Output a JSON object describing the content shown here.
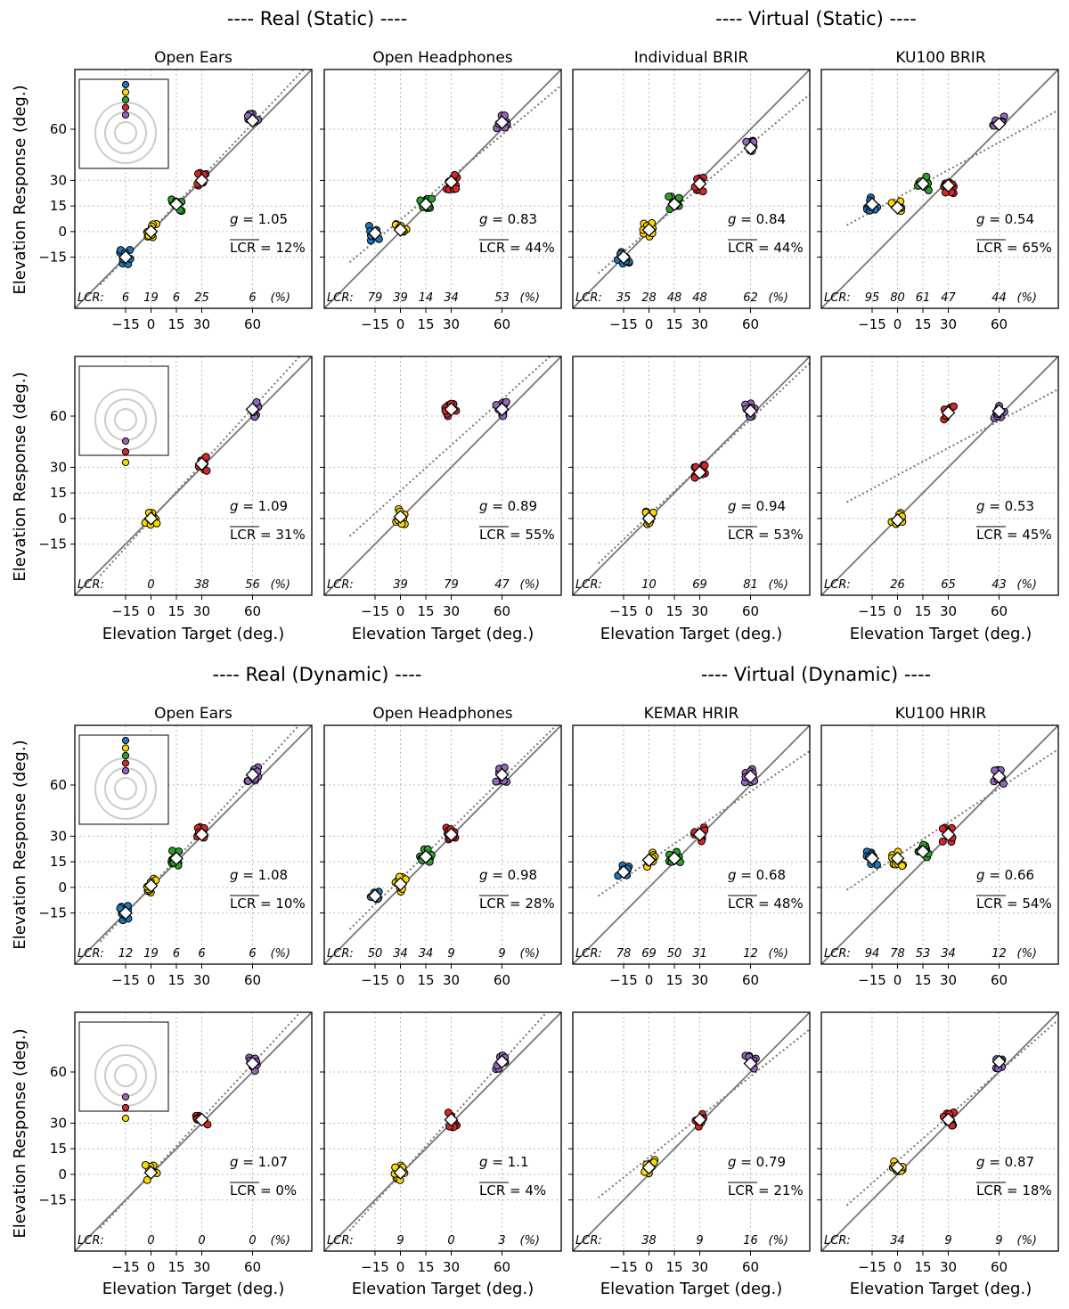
{
  "section_titles": {
    "real_static": "---- Real (Static) ----",
    "virtual_static": "---- Virtual (Static) ----",
    "real_dynamic": "---- Real (Dynamic) ----",
    "virtual_dynamic": "---- Virtual (Dynamic) ----"
  },
  "column_titles_static": [
    "Open Ears",
    "Open Headphones",
    "Individual BRIR",
    "KU100 BRIR"
  ],
  "column_titles_dynamic": [
    "Open Ears",
    "Open Headphones",
    "KEMAR HRIR",
    "KU100 HRIR"
  ],
  "ylabel": "Elevation Response (deg.)",
  "xlabel": "Elevation Target (deg.)",
  "lcr_label": "LCR:",
  "lcr_unit": "(%)",
  "g_prefix": "g = ",
  "lcr_mean_prefix": "LCR",
  "colors": {
    "-15": "#1f77b4",
    "0": "#ffd700",
    "15": "#2ca02c",
    "30": "#d62728",
    "60": "#9467bd",
    "grid": "#bbbbbb",
    "identity": "#777777",
    "fit": "#777777",
    "inset_circles": "#cccccc"
  },
  "chart_data": [
    {
      "type": "scatter",
      "row": 0,
      "col": 0,
      "section": "Real (Static)",
      "title": "Open Ears",
      "xlim": [
        -45,
        95
      ],
      "ylim": [
        -45,
        95
      ],
      "xticks": [
        -15,
        0,
        15,
        30,
        60
      ],
      "yticks": [
        -15,
        0,
        15,
        30,
        60
      ],
      "targets": [
        -15,
        0,
        15,
        30,
        60
      ],
      "mean_response": [
        -15,
        0,
        16,
        30,
        65
      ],
      "g": "1.05",
      "lcr_mean": "12%",
      "lcr": [
        "6",
        "19",
        "6",
        "25",
        "6"
      ],
      "inset": "upper"
    },
    {
      "type": "scatter",
      "row": 0,
      "col": 1,
      "section": "Real (Static)",
      "title": "Open Headphones",
      "xlim": [
        -45,
        95
      ],
      "ylim": [
        -45,
        95
      ],
      "xticks": [
        -15,
        0,
        15,
        30,
        60
      ],
      "yticks": [
        -15,
        0,
        15,
        30,
        60
      ],
      "targets": [
        -15,
        0,
        15,
        30,
        60
      ],
      "mean_response": [
        -1,
        1,
        16,
        29,
        64
      ],
      "g": "0.83",
      "lcr_mean": "44%",
      "lcr": [
        "79",
        "39",
        "14",
        "34",
        "53"
      ]
    },
    {
      "type": "scatter",
      "row": 0,
      "col": 2,
      "section": "Virtual (Static)",
      "title": "Individual BRIR",
      "xlim": [
        -45,
        95
      ],
      "ylim": [
        -45,
        95
      ],
      "xticks": [
        -15,
        0,
        15,
        30,
        60
      ],
      "yticks": [
        -15,
        0,
        15,
        30,
        60
      ],
      "targets": [
        -15,
        0,
        15,
        30,
        60
      ],
      "mean_response": [
        -15,
        1,
        16,
        28,
        49
      ],
      "g": "0.84",
      "lcr_mean": "44%",
      "lcr": [
        "35",
        "28",
        "48",
        "48",
        "62"
      ]
    },
    {
      "type": "scatter",
      "row": 0,
      "col": 3,
      "section": "Virtual (Static)",
      "title": "KU100 BRIR",
      "xlim": [
        -45,
        95
      ],
      "ylim": [
        -45,
        95
      ],
      "xticks": [
        -15,
        0,
        15,
        30,
        60
      ],
      "yticks": [
        -15,
        0,
        15,
        30,
        60
      ],
      "targets": [
        -15,
        0,
        15,
        30,
        60
      ],
      "mean_response": [
        16,
        14,
        28,
        27,
        63
      ],
      "g": "0.54",
      "lcr_mean": "65%",
      "lcr": [
        "95",
        "80",
        "61",
        "47",
        "44"
      ]
    },
    {
      "type": "scatter",
      "row": 1,
      "col": 0,
      "section": "Real (Static)",
      "title": "",
      "xlim": [
        -45,
        95
      ],
      "ylim": [
        -45,
        95
      ],
      "xticks": [
        -15,
        0,
        15,
        30,
        60
      ],
      "yticks": [
        -15,
        0,
        15,
        30,
        60
      ],
      "targets": [
        0,
        30,
        60
      ],
      "mean_response": [
        0,
        32,
        64
      ],
      "g": "1.09",
      "lcr_mean": "31%",
      "lcr": [
        "0",
        "38",
        "56"
      ],
      "inset": "lower"
    },
    {
      "type": "scatter",
      "row": 1,
      "col": 1,
      "section": "Real (Static)",
      "title": "",
      "xlim": [
        -45,
        95
      ],
      "ylim": [
        -45,
        95
      ],
      "xticks": [
        -15,
        0,
        15,
        30,
        60
      ],
      "yticks": [
        -15,
        0,
        15,
        30,
        60
      ],
      "targets": [
        0,
        30,
        60
      ],
      "mean_response": [
        1,
        64,
        64
      ],
      "g": "0.89",
      "lcr_mean": "55%",
      "lcr": [
        "39",
        "79",
        "47"
      ]
    },
    {
      "type": "scatter",
      "row": 1,
      "col": 2,
      "section": "Virtual (Static)",
      "title": "",
      "xlim": [
        -45,
        95
      ],
      "ylim": [
        -45,
        95
      ],
      "xticks": [
        -15,
        0,
        15,
        30,
        60
      ],
      "yticks": [
        -15,
        0,
        15,
        30,
        60
      ],
      "targets": [
        0,
        30,
        60
      ],
      "mean_response": [
        0,
        27,
        63
      ],
      "g": "0.94",
      "lcr_mean": "53%",
      "lcr": [
        "10",
        "69",
        "81"
      ]
    },
    {
      "type": "scatter",
      "row": 1,
      "col": 3,
      "section": "Virtual (Static)",
      "title": "",
      "xlim": [
        -45,
        95
      ],
      "ylim": [
        -45,
        95
      ],
      "xticks": [
        -15,
        0,
        15,
        30,
        60
      ],
      "yticks": [
        -15,
        0,
        15,
        30,
        60
      ],
      "targets": [
        0,
        30,
        60
      ],
      "mean_response": [
        -1,
        62,
        63
      ],
      "g": "0.53",
      "lcr_mean": "45%",
      "lcr": [
        "26",
        "65",
        "43"
      ]
    },
    {
      "type": "scatter",
      "row": 2,
      "col": 0,
      "section": "Real (Dynamic)",
      "title": "Open Ears",
      "xlim": [
        -45,
        95
      ],
      "ylim": [
        -45,
        95
      ],
      "xticks": [
        -15,
        0,
        15,
        30,
        60
      ],
      "yticks": [
        -15,
        0,
        15,
        30,
        60
      ],
      "targets": [
        -15,
        0,
        15,
        30,
        60
      ],
      "mean_response": [
        -15,
        1,
        17,
        31,
        66
      ],
      "g": "1.08",
      "lcr_mean": "10%",
      "lcr": [
        "12",
        "19",
        "6",
        "6",
        "6"
      ],
      "inset": "upper"
    },
    {
      "type": "scatter",
      "row": 2,
      "col": 1,
      "section": "Real (Dynamic)",
      "title": "Open Headphones",
      "xlim": [
        -45,
        95
      ],
      "ylim": [
        -45,
        95
      ],
      "xticks": [
        -15,
        0,
        15,
        30,
        60
      ],
      "yticks": [
        -15,
        0,
        15,
        30,
        60
      ],
      "targets": [
        -15,
        0,
        15,
        30,
        60
      ],
      "mean_response": [
        -5,
        2,
        18,
        31,
        66
      ],
      "g": "0.98",
      "lcr_mean": "28%",
      "lcr": [
        "50",
        "34",
        "34",
        "9",
        "9"
      ]
    },
    {
      "type": "scatter",
      "row": 2,
      "col": 2,
      "section": "Virtual (Dynamic)",
      "title": "KEMAR HRIR",
      "xlim": [
        -45,
        95
      ],
      "ylim": [
        -45,
        95
      ],
      "xticks": [
        -15,
        0,
        15,
        30,
        60
      ],
      "yticks": [
        -15,
        0,
        15,
        30,
        60
      ],
      "targets": [
        -15,
        0,
        15,
        30,
        60
      ],
      "mean_response": [
        9,
        16,
        17,
        31,
        65
      ],
      "g": "0.68",
      "lcr_mean": "48%",
      "lcr": [
        "78",
        "69",
        "50",
        "31",
        "12"
      ]
    },
    {
      "type": "scatter",
      "row": 2,
      "col": 3,
      "section": "Virtual (Dynamic)",
      "title": "KU100 HRIR",
      "xlim": [
        -45,
        95
      ],
      "ylim": [
        -45,
        95
      ],
      "xticks": [
        -15,
        0,
        15,
        30,
        60
      ],
      "yticks": [
        -15,
        0,
        15,
        30,
        60
      ],
      "targets": [
        -15,
        0,
        15,
        30,
        60
      ],
      "mean_response": [
        17,
        17,
        21,
        31,
        65
      ],
      "g": "0.66",
      "lcr_mean": "54%",
      "lcr": [
        "94",
        "78",
        "53",
        "34",
        "12"
      ]
    },
    {
      "type": "scatter",
      "row": 3,
      "col": 0,
      "section": "Real (Dynamic)",
      "title": "",
      "xlim": [
        -45,
        95
      ],
      "ylim": [
        -45,
        95
      ],
      "xticks": [
        -15,
        0,
        15,
        30,
        60
      ],
      "yticks": [
        -15,
        0,
        15,
        30,
        60
      ],
      "targets": [
        0,
        30,
        60
      ],
      "mean_response": [
        1,
        32,
        65
      ],
      "g": "1.07",
      "lcr_mean": "0%",
      "lcr": [
        "0",
        "0",
        "0"
      ],
      "inset": "lower"
    },
    {
      "type": "scatter",
      "row": 3,
      "col": 1,
      "section": "Real (Dynamic)",
      "title": "",
      "xlim": [
        -45,
        95
      ],
      "ylim": [
        -45,
        95
      ],
      "xticks": [
        -15,
        0,
        15,
        30,
        60
      ],
      "yticks": [
        -15,
        0,
        15,
        30,
        60
      ],
      "targets": [
        0,
        30,
        60
      ],
      "mean_response": [
        1,
        32,
        66
      ],
      "g": "1.1",
      "lcr_mean": "4%",
      "lcr": [
        "9",
        "0",
        "3"
      ]
    },
    {
      "type": "scatter",
      "row": 3,
      "col": 2,
      "section": "Virtual (Dynamic)",
      "title": "",
      "xlim": [
        -45,
        95
      ],
      "ylim": [
        -45,
        95
      ],
      "xticks": [
        -15,
        0,
        15,
        30,
        60
      ],
      "yticks": [
        -15,
        0,
        15,
        30,
        60
      ],
      "targets": [
        0,
        30,
        60
      ],
      "mean_response": [
        4,
        32,
        65
      ],
      "g": "0.79",
      "lcr_mean": "21%",
      "lcr": [
        "38",
        "9",
        "16"
      ]
    },
    {
      "type": "scatter",
      "row": 3,
      "col": 3,
      "section": "Virtual (Dynamic)",
      "title": "",
      "xlim": [
        -45,
        95
      ],
      "ylim": [
        -45,
        95
      ],
      "xticks": [
        -15,
        0,
        15,
        30,
        60
      ],
      "yticks": [
        -15,
        0,
        15,
        30,
        60
      ],
      "targets": [
        0,
        30,
        60
      ],
      "mean_response": [
        4,
        32,
        66
      ],
      "g": "0.87",
      "lcr_mean": "18%",
      "lcr": [
        "34",
        "9",
        "9"
      ]
    }
  ]
}
